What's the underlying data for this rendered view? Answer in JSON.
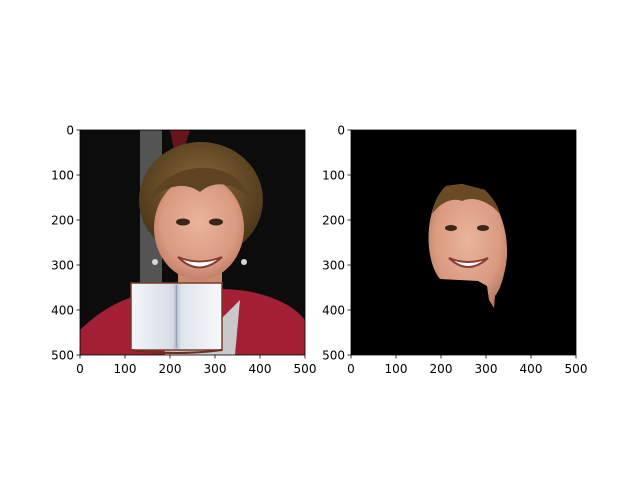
{
  "chart_data": [
    {
      "type": "image",
      "title": "",
      "xlabel": "",
      "ylabel": "",
      "xlim": [
        0,
        500
      ],
      "ylim": [
        500,
        0
      ],
      "xticks": [
        0,
        100,
        200,
        300,
        400,
        500
      ],
      "yticks": [
        0,
        100,
        200,
        300,
        400,
        500
      ],
      "content": "photo of smiling woman with short brown hair in red jacket; open book image pasted over lower center",
      "overlay": {
        "x_range": [
          115,
          315
        ],
        "y_range": [
          340,
          500
        ]
      }
    },
    {
      "type": "image",
      "title": "",
      "xlabel": "",
      "ylabel": "",
      "xlim": [
        0,
        500
      ],
      "ylim": [
        500,
        0
      ],
      "xticks": [
        0,
        100,
        200,
        300,
        400,
        500
      ],
      "yticks": [
        0,
        100,
        200,
        300,
        400,
        500
      ],
      "content": "segmented face mask on black background; only face region visible"
    }
  ]
}
